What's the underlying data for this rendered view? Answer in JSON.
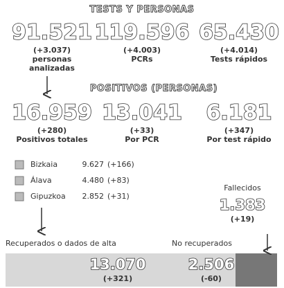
{
  "tests": {
    "title": "TESTS Y PERSONAS",
    "stats": [
      {
        "value": "91.521",
        "change": "(+3.037)",
        "label": [
          "personas",
          "analizadas"
        ]
      },
      {
        "value": "119.596",
        "change": "(+4.003)",
        "label": [
          "PCRs"
        ]
      },
      {
        "value": "65.430",
        "change": "(+4.014)",
        "label": [
          "Tests rápidos"
        ]
      }
    ]
  },
  "positives": {
    "title": "POSITIVOS (PERSONAS)",
    "stats": [
      {
        "value": "16.959",
        "change": "(+280)",
        "label": [
          "Positivos totales"
        ]
      },
      {
        "value": "13.041",
        "change": "(+33)",
        "label": [
          "Por PCR"
        ]
      },
      {
        "value": "6.181",
        "change": "(+347)",
        "label": [
          "Por test rápido"
        ]
      }
    ]
  },
  "provinces": [
    {
      "name": "Bizkaia",
      "value": "9.627",
      "change": "(+166)"
    },
    {
      "name": "Álava",
      "value": "4.480",
      "change": "(+83)"
    },
    {
      "name": "Gipuzkoa",
      "value": "2.852",
      "change": "(+31)"
    }
  ],
  "deaths": {
    "label": "Fallecidos",
    "value": "1.383",
    "change": "(+19)"
  },
  "recovered": {
    "label": "Recuperados o dados de alta",
    "value": "13.070",
    "change": "(+321)"
  },
  "not_recovered": {
    "label": "No recuperados",
    "value": "2.506",
    "change": "(-60)"
  }
}
